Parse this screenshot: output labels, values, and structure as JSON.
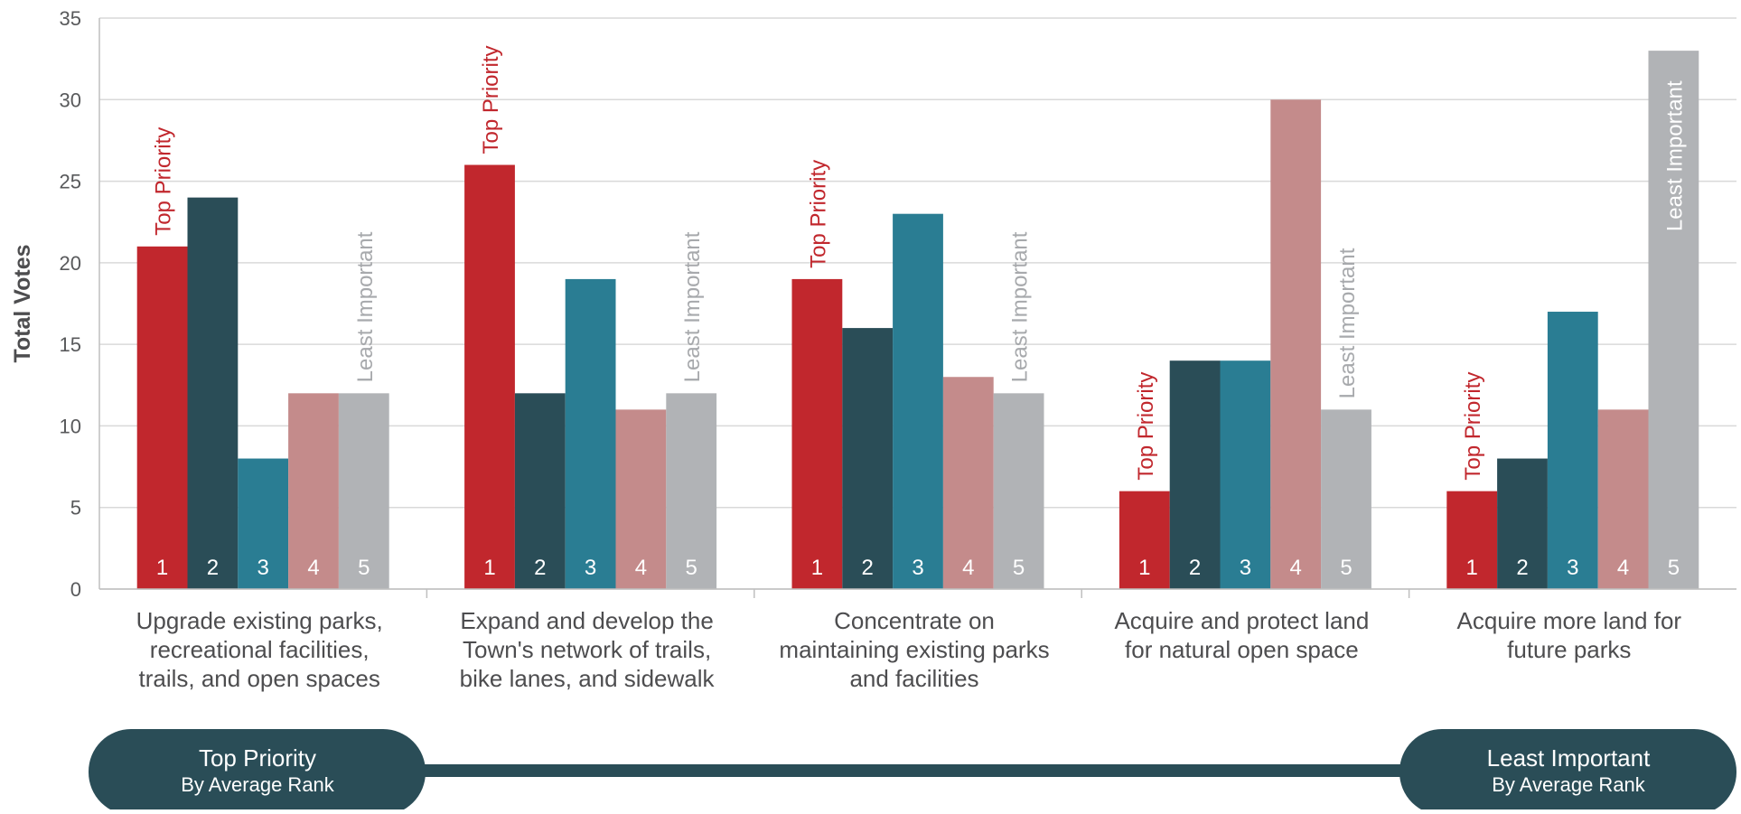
{
  "chart_data": {
    "type": "bar",
    "ylabel": "Total Votes",
    "ylim": [
      0,
      35
    ],
    "yticks": [
      0,
      5,
      10,
      15,
      20,
      25,
      30,
      35
    ],
    "grid": true,
    "categories": [
      [
        "Upgrade existing parks,",
        "recreational facilities,",
        "trails, and open spaces"
      ],
      [
        "Expand and develop the",
        "Town's network of trails,",
        "bike lanes, and sidewalk"
      ],
      [
        "Concentrate on",
        "maintaining existing parks",
        "and facilities"
      ],
      [
        "Acquire and protect land",
        "for natural open space"
      ],
      [
        "Acquire more land for",
        "future parks"
      ]
    ],
    "series": [
      {
        "name": "1",
        "color": "#c1272d",
        "values": [
          21,
          26,
          19,
          6,
          6
        ]
      },
      {
        "name": "2",
        "color": "#2a4d57",
        "values": [
          24,
          12,
          16,
          14,
          8
        ]
      },
      {
        "name": "3",
        "color": "#2a7d93",
        "values": [
          8,
          19,
          23,
          14,
          17
        ]
      },
      {
        "name": "4",
        "color": "#c48b8b",
        "values": [
          12,
          11,
          13,
          30,
          11
        ]
      },
      {
        "name": "5",
        "color": "#b1b3b6",
        "values": [
          12,
          12,
          12,
          11,
          33
        ]
      }
    ],
    "annotations": {
      "top": "Top Priority",
      "least": "Least Important"
    }
  },
  "legend_bar": {
    "left_title": "Top Priority",
    "left_sub": "By Average Rank",
    "right_title": "Least Important",
    "right_sub": "By Average Rank",
    "color": "#2a4d57"
  }
}
